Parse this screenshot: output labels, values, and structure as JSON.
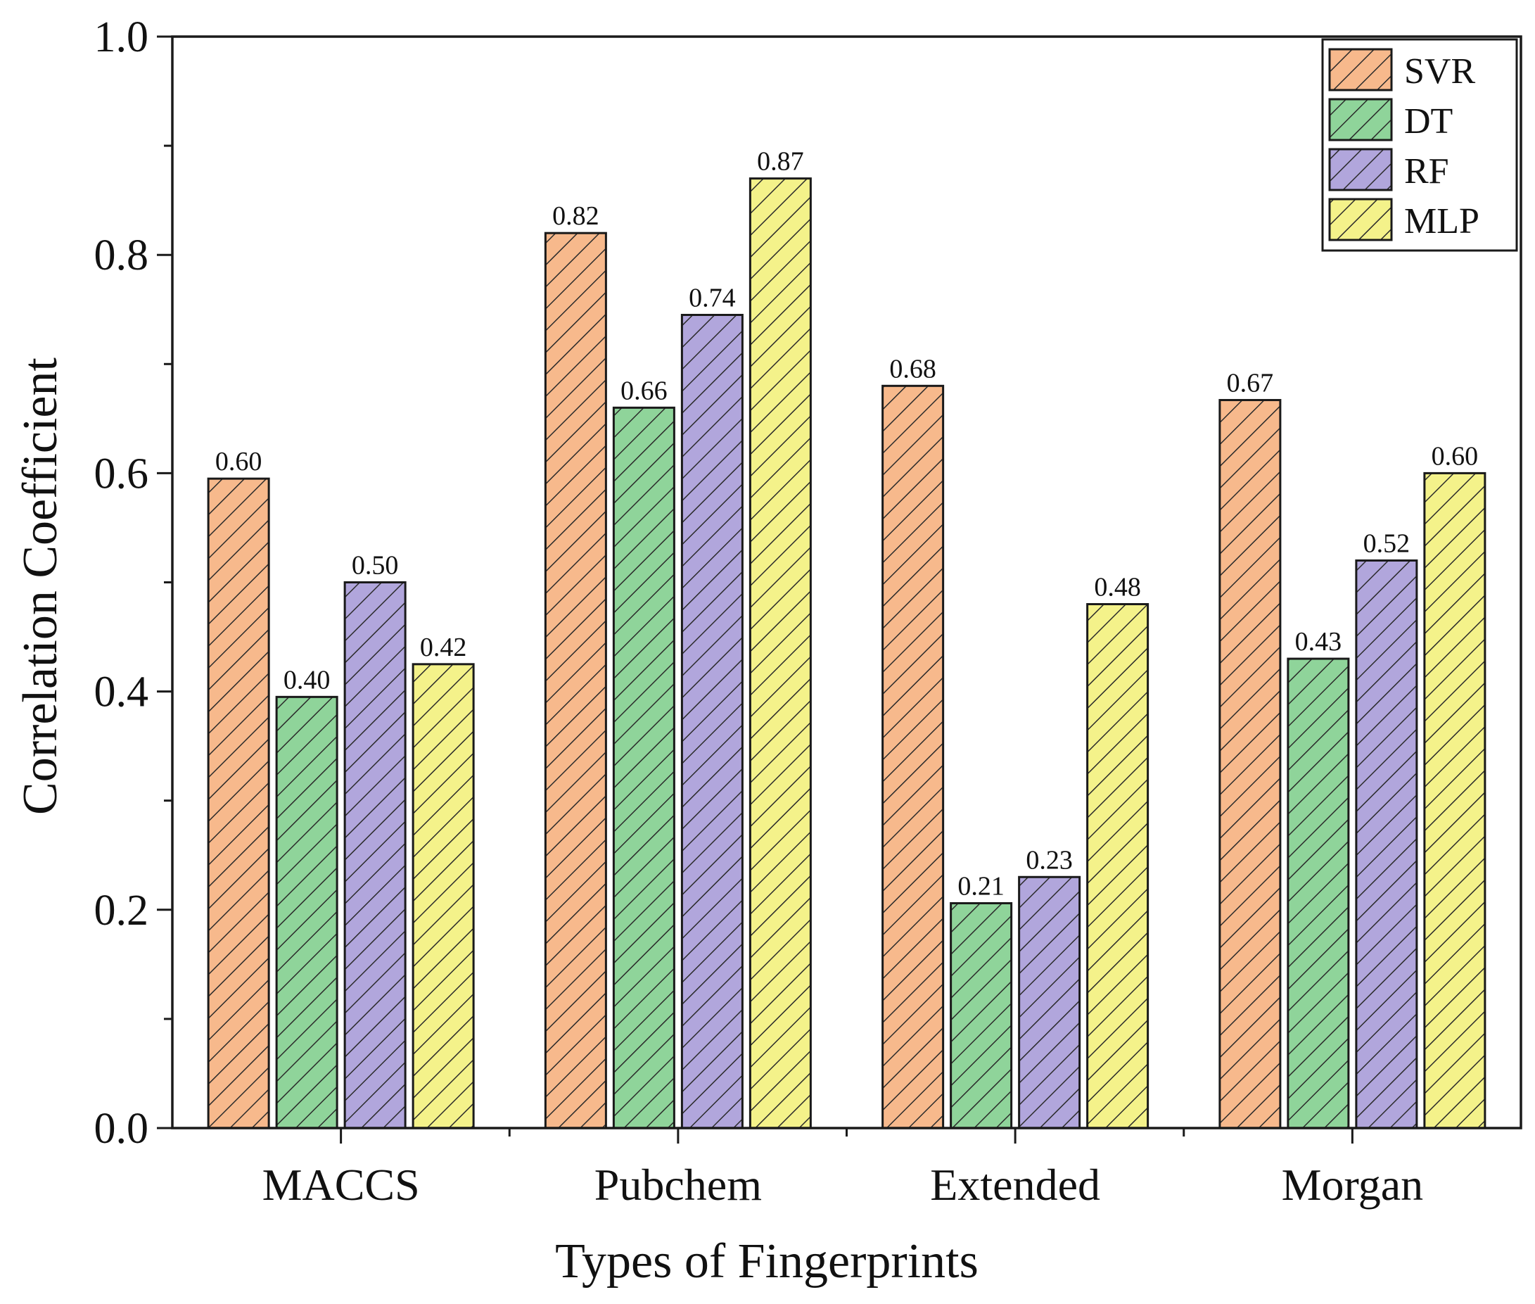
{
  "chart_data": {
    "type": "bar",
    "title": "",
    "xlabel": "Types of Fingerprints",
    "ylabel": "Correlation Coefficient",
    "ylim": [
      0,
      1.0
    ],
    "yticks": [
      "0.0",
      "0.2",
      "0.4",
      "0.6",
      "0.8",
      "1.0"
    ],
    "categories": [
      "MACCS",
      "Pubchem",
      "Extended",
      "Morgan"
    ],
    "legend_position": "top-right",
    "grid": false,
    "pattern": "diagonal-hatch",
    "series": [
      {
        "name": "SVR",
        "color": "#f7b98c",
        "values": [
          0.595,
          0.82,
          0.68,
          0.667
        ],
        "labels": [
          "0.60",
          "0.82",
          "0.68",
          "0.67"
        ]
      },
      {
        "name": "DT",
        "color": "#8fd49a",
        "values": [
          0.395,
          0.66,
          0.206,
          0.43
        ],
        "labels": [
          "0.40",
          "0.66",
          "0.21",
          "0.43"
        ]
      },
      {
        "name": "RF",
        "color": "#b1a6dc",
        "values": [
          0.5,
          0.745,
          0.23,
          0.52
        ],
        "labels": [
          "0.50",
          "0.74",
          "0.23",
          "0.52"
        ]
      },
      {
        "name": "MLP",
        "color": "#f4f28a",
        "values": [
          0.425,
          0.87,
          0.48,
          0.6
        ],
        "labels": [
          "0.42",
          "0.87",
          "0.48",
          "0.60"
        ]
      }
    ]
  }
}
